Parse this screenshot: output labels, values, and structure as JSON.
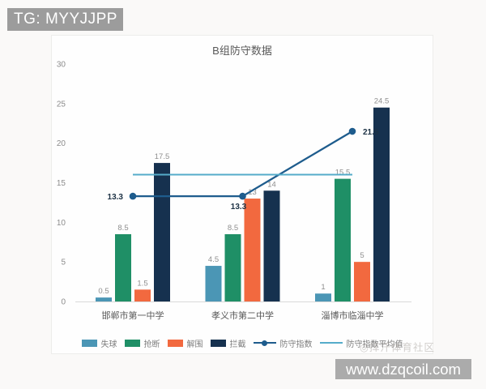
{
  "watermarks": {
    "top_left": "TG: MYYJJPP",
    "faint": "◎挥汗体育社区",
    "bottom_right": "www.dzqcoil.com"
  },
  "chart_data": {
    "type": "bar",
    "subtype": "grouped-bars-with-lines",
    "title": "B组防守数据",
    "categories": [
      "邯郸市第一中学",
      "孝义市第二中学",
      "淄博市临淄中学"
    ],
    "bar_series": [
      {
        "key": "conceded",
        "name": "失球",
        "color": "#4b96b5",
        "values": [
          0.5,
          4.5,
          1
        ]
      },
      {
        "key": "steals",
        "name": "抢断",
        "color": "#1f8f66",
        "values": [
          8.5,
          8.5,
          15.5
        ]
      },
      {
        "key": "clearances",
        "name": "解围",
        "color": "#f2693f",
        "values": [
          1.5,
          13,
          5
        ]
      },
      {
        "key": "interceptions",
        "name": "拦截",
        "color": "#16314f",
        "values": [
          17.5,
          14,
          24.5
        ]
      }
    ],
    "line_series": [
      {
        "key": "defense-index",
        "name": "防守指数",
        "color": "#1e5c8d",
        "marker": true,
        "values": [
          13.3,
          13.3,
          21.5
        ],
        "labels": [
          "13.3",
          "13.3",
          "21.5"
        ]
      },
      {
        "key": "defense-index-average",
        "name": "防守指数平均值",
        "color": "#55acca",
        "marker": false,
        "values": [
          16.03,
          16.03,
          16.03
        ]
      }
    ],
    "ylim": [
      0,
      30
    ],
    "yticks": [
      0,
      5,
      10,
      15,
      20,
      25,
      30
    ],
    "grid": false,
    "legend_position": "bottom",
    "axis_line_color": "#d9d9d9"
  }
}
